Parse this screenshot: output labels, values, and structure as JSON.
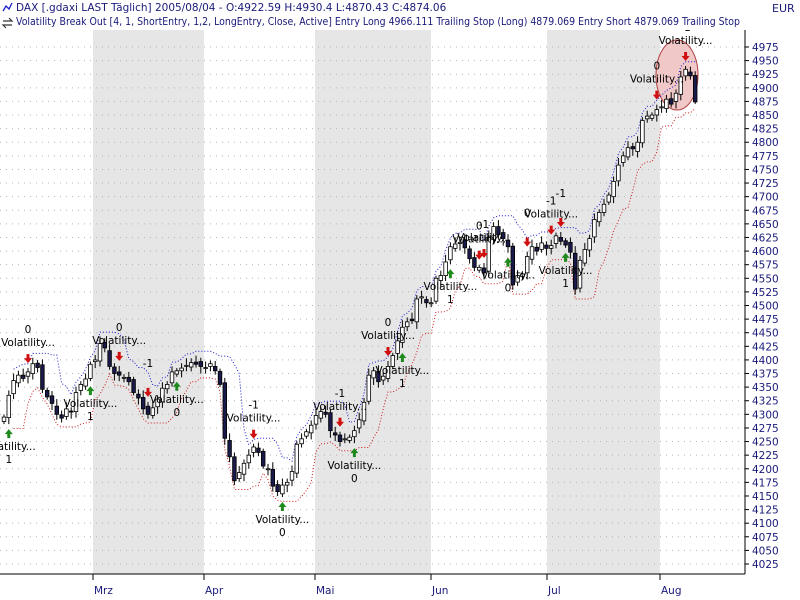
{
  "header": {
    "title_line": "DAX [.gdaxi LAST Täglich] 2005/08/04 - O:4922.59 H:4930.4 L:4870.43 C:4874.06",
    "indicator_line": "Volatility Break Out [4, 1, ShortEntry, 1,2, LongEntry, Close, Active] Entry Long 4966.111 Trailing Stop (Long) 4879.069 Entry Short 4879.069 Trailing Stop",
    "currency": "EUR"
  },
  "icons": {
    "price_icon": "line-chart-icon",
    "indicator_icon": "swap-arrows-icon"
  },
  "colors": {
    "up_candle": "#ffffff",
    "down_candle": "#1a1a4a",
    "upper_band": "#1a1acc",
    "lower_band": "#cc1a1a",
    "long_arrow": "#1e8a1e",
    "short_arrow": "#d01010",
    "stripe": "#e6e6e6",
    "highlight": "#f0c8c8"
  },
  "chart_data": {
    "type": "candlestick",
    "instrument": "DAX",
    "y_axis": {
      "min": 4025,
      "max": 4975,
      "step": 25,
      "unit": "EUR",
      "ticks": [
        "4975",
        "4950",
        "4925",
        "4900",
        "4875",
        "4850",
        "4825",
        "4800",
        "4775",
        "4750",
        "4725",
        "4700",
        "4675",
        "4650",
        "4625",
        "4600",
        "4575",
        "4550",
        "4525",
        "4500",
        "4475",
        "4450",
        "4425",
        "4400",
        "4375",
        "4350",
        "4325",
        "4300",
        "4275",
        "4250",
        "4225",
        "4200",
        "4175",
        "4150",
        "4125",
        "4100",
        "4075",
        "4050",
        "4025"
      ]
    },
    "x_axis": {
      "month_labels": [
        "Mrz",
        "Apr",
        "Mai",
        "Jun",
        "Jul",
        "Aug"
      ]
    },
    "grid": true,
    "last_bar": {
      "date": "2005/08/04",
      "open": 4922.59,
      "high": 4930.4,
      "low": 4870.43,
      "close": 4874.06
    },
    "series": [
      {
        "name": "Volatility Break Out",
        "parameters": [
          4,
          1,
          "ShortEntry",
          1.2,
          "LongEntry",
          "Close",
          "Active"
        ],
        "entry_long": 4966.111,
        "trailing_stop_long": 4879.069,
        "entry_short": 4879.069
      }
    ],
    "closes": [
      4295,
      4335,
      4362,
      4372,
      4366,
      4378,
      4393,
      4386,
      4346,
      4332,
      4320,
      4300,
      4293,
      4310,
      4305,
      4340,
      4355,
      4365,
      4392,
      4400,
      4430,
      4422,
      4388,
      4375,
      4372,
      4368,
      4360,
      4340,
      4330,
      4310,
      4300,
      4312,
      4328,
      4348,
      4355,
      4378,
      4380,
      4385,
      4390,
      4395,
      4392,
      4388,
      4386,
      4393,
      4380,
      4355,
      4256,
      4222,
      4178,
      4193,
      4210,
      4225,
      4240,
      4230,
      4205,
      4200,
      4168,
      4158,
      4170,
      4175,
      4195,
      4245,
      4255,
      4268,
      4280,
      4298,
      4305,
      4300,
      4270,
      4262,
      4250,
      4255,
      4258,
      4270,
      4290,
      4322,
      4372,
      4380,
      4360,
      4370,
      4388,
      4408,
      4435,
      4460,
      4470,
      4472,
      4512,
      4516,
      4505,
      4505,
      4550,
      4555,
      4580,
      4608,
      4613,
      4616,
      4606,
      4586,
      4570,
      4570,
      4560,
      4625,
      4645,
      4630,
      4623,
      4608,
      4538,
      4555,
      4558,
      4590,
      4608,
      4600,
      4615,
      4605,
      4610,
      4628,
      4618,
      4611,
      4598,
      4530,
      4583,
      4603,
      4623,
      4658,
      4671,
      4686,
      4703,
      4728,
      4758,
      4775,
      4790,
      4788,
      4800,
      4840,
      4848,
      4850,
      4860,
      4865,
      4879,
      4870,
      4890,
      4920,
      4934,
      4922,
      4874
    ],
    "signals": [
      {
        "type": "long",
        "label": "Volatility...",
        "value": "1"
      },
      {
        "type": "short",
        "label": "Volatility...",
        "value": "0"
      },
      {
        "type": "long",
        "label": "Volatility...",
        "value": "1"
      },
      {
        "type": "short",
        "label": "Volatility...",
        "value": "0"
      },
      {
        "type": "short",
        "label": "",
        "value": "-1"
      },
      {
        "type": "long",
        "label": "Volatility...",
        "value": "0"
      },
      {
        "type": "short",
        "label": "Volatility...",
        "value": "-1"
      },
      {
        "type": "long",
        "label": "Volatility...",
        "value": "0"
      },
      {
        "type": "short",
        "label": "Volatility...",
        "value": "-1"
      },
      {
        "type": "long",
        "label": "Volatility...",
        "value": "0"
      },
      {
        "type": "short",
        "label": "Volatility...",
        "value": "0"
      },
      {
        "type": "long",
        "label": "Volatility...",
        "value": "1"
      },
      {
        "type": "long",
        "label": "Volatility...",
        "value": "1"
      },
      {
        "type": "short",
        "label": "Volatility...",
        "value": "0"
      },
      {
        "type": "short",
        "label": "Volatility...",
        "value": "-1"
      },
      {
        "type": "long",
        "label": "Volatility...",
        "value": "0"
      },
      {
        "type": "short",
        "label": "",
        "value": "0"
      },
      {
        "type": "short",
        "label": "Volatility...",
        "value": "-1"
      },
      {
        "type": "short",
        "label": "",
        "value": "-1"
      },
      {
        "type": "long",
        "label": "Volatility...",
        "value": "1"
      },
      {
        "type": "short",
        "label": "Volatility...",
        "value": "0"
      },
      {
        "type": "short",
        "label": "Volatility...",
        "value": "-1"
      }
    ]
  }
}
